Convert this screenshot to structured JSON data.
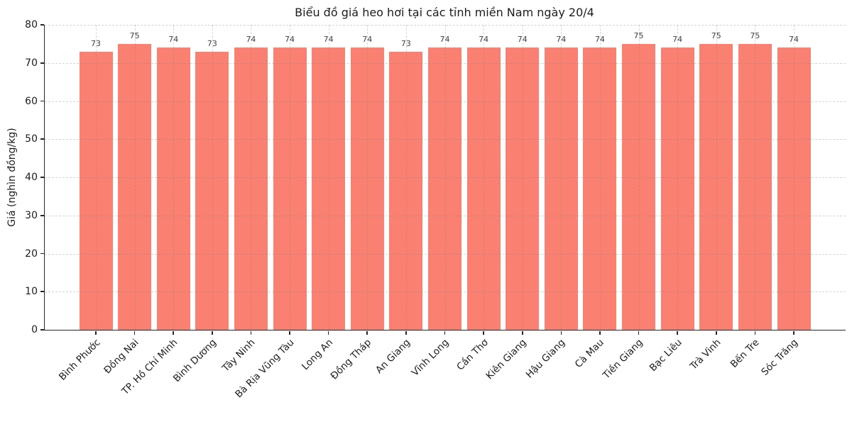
{
  "figure": {
    "background": "#ffffff"
  },
  "chart_data": {
    "type": "bar",
    "title": "Biểu đồ giá heo hơi tại các tỉnh miền Nam ngày 20/4",
    "xlabel": "",
    "ylabel": "Giá (nghìn đồng/kg)",
    "categories": [
      "Bình Phước",
      "Đồng Nai",
      "TP. Hồ Chí Minh",
      "Bình Dương",
      "Tây Ninh",
      "Bà Rịa Vũng Tàu",
      "Long An",
      "Đồng Tháp",
      "An Giang",
      "Vĩnh Long",
      "Cần Thơ",
      "Kiên Giang",
      "Hậu Giang",
      "Cà Mau",
      "Tiền Giang",
      "Bạc Liêu",
      "Trà Vinh",
      "Bến Tre",
      "Sóc Trăng"
    ],
    "values": [
      73,
      75,
      74,
      73,
      74,
      74,
      74,
      74,
      73,
      74,
      74,
      74,
      74,
      74,
      75,
      74,
      75,
      75,
      74
    ],
    "ylim": [
      0,
      80
    ],
    "yticks": [
      0,
      10,
      20,
      30,
      40,
      50,
      60,
      70,
      80
    ],
    "x_tick_rotation": 45,
    "grid": "dashed",
    "legend": "none",
    "colors": {
      "bar": "#FA8072",
      "grid": "#d6d6d6",
      "axis": "#262626",
      "title_text": "#1c1c1c",
      "tick_text": "#1c1c1c",
      "value_text": "#3f3f3f"
    }
  }
}
